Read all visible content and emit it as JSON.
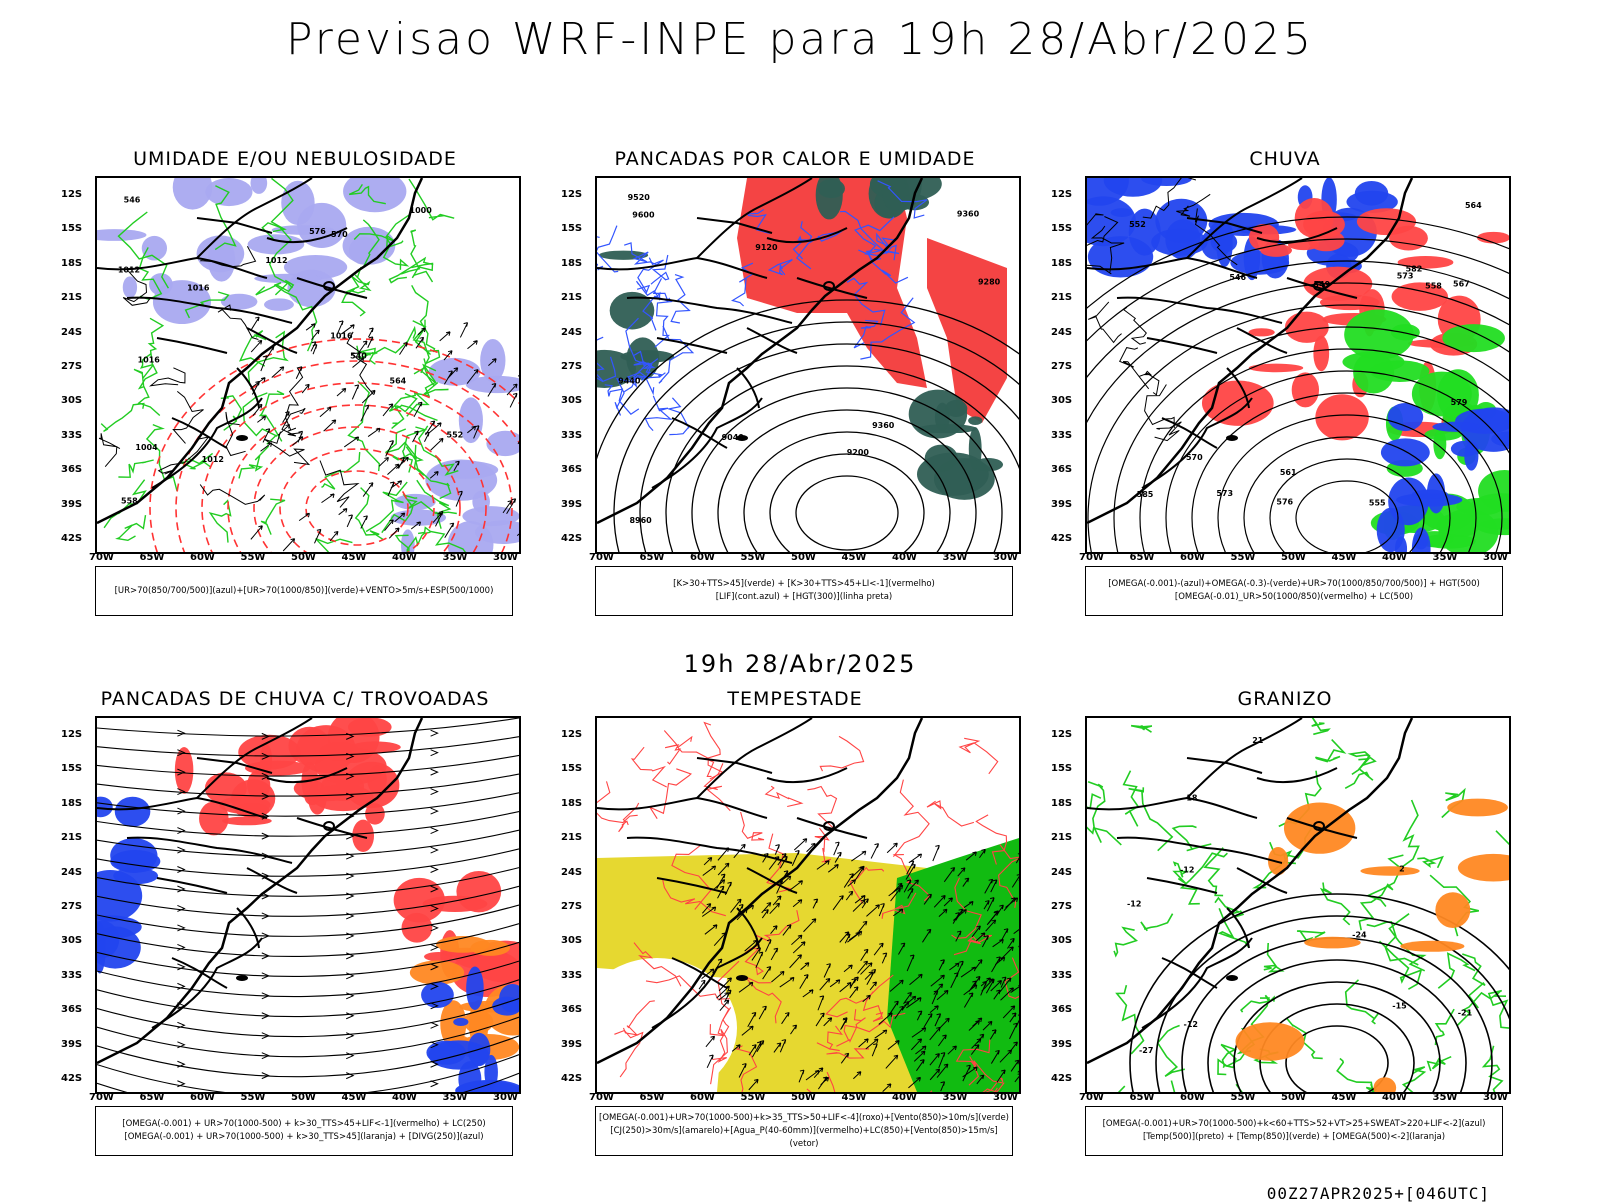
{
  "main_title": "Previsao WRF-INPE  para 19h 28/Abr/2025",
  "sub_title": "19h 28/Abr/2025",
  "footer": "00Z27APR2025+[046UTC]",
  "lat_labels": [
    "12S",
    "15S",
    "18S",
    "21S",
    "24S",
    "27S",
    "30S",
    "33S",
    "36S",
    "39S",
    "42S"
  ],
  "lon_labels": [
    "70W",
    "65W",
    "60W",
    "55W",
    "50W",
    "45W",
    "40W",
    "35W",
    "30W"
  ],
  "panels": [
    {
      "title": "UMIDADE E/OU NEBULOSIDADE",
      "legend": [
        "[UR>70(850/700/500)](azul)+[UR>70(1000/850)](verde)+VENTO>5m/s+ESP(500/1000)"
      ],
      "colors": {
        "fill_a": "#a9a9f0",
        "fill_b": "#ffffff",
        "line_a": "#22cc22",
        "line_b": "#ff3333",
        "line_c": "#000000"
      },
      "contour_labels": [
        "1012",
        "1012",
        "1016",
        "1012",
        "1016",
        "1004",
        "1000",
        "1016",
        "570",
        "576",
        "564",
        "558",
        "552",
        "546",
        "540"
      ]
    },
    {
      "title": "PANCADAS POR CALOR E UMIDADE",
      "legend": [
        "[K>30+TTS>45](verde) + [K>30+TTS>45+LI<-1](vermelho)",
        "[LIF](cont.azul) + [HGT(300)](linha preta)"
      ],
      "colors": {
        "fill_a": "#f44444",
        "fill_b": "#2f5e54",
        "line_a": "#3355ff",
        "line_c": "#000000"
      },
      "contour_labels": [
        "9600",
        "9520",
        "9440",
        "9360",
        "9280",
        "9200",
        "9120",
        "9040",
        "8960",
        "9360"
      ]
    },
    {
      "title": "CHUVA",
      "legend": [
        "[OMEGA(-0.001)-(azul)+OMEGA(-0.3)-(verde)+UR>70(1000/850/700/500)] + HGT(500)",
        "[OMEGA(-0.01)_UR>50(1000/850)(vermelho) + LC(500)"
      ],
      "colors": {
        "fill_a": "#ff4444",
        "fill_b": "#2244ee",
        "fill_c": "#22dd22",
        "line_c": "#000000"
      },
      "contour_labels": [
        "585",
        "582",
        "579",
        "576",
        "573",
        "570",
        "567",
        "564",
        "561",
        "558",
        "555",
        "552",
        "549",
        "546",
        "573"
      ]
    },
    {
      "title": "PANCADAS DE CHUVA C/ TROVOADAS",
      "legend": [
        "[OMEGA(-0.001) + UR>70(1000-500) + k>30_TTS>45+LIF<-1](vermelho) + LC(250)",
        "[OMEGA(-0.001) + UR>70(1000-500) + k>30_TTS>45](laranja) + [DIVG(250)](azul)"
      ],
      "colors": {
        "fill_a": "#ff4444",
        "fill_b": "#ff8822",
        "fill_c": "#2244ee",
        "line_c": "#000000"
      },
      "contour_labels": []
    },
    {
      "title": "TEMPESTADE",
      "legend": [
        "[OMEGA(-0.001)+UR>70(1000-500)+k>35_TTS>50+LIF<-4](roxo)+[Vento(850)>10m/s](verde)",
        "[CJ(250)>30m/s](amarelo)+[Agua_P(40-60mm)](vermelho)+LC(850)+[Vento(850)>15m/s](vetor)"
      ],
      "colors": {
        "fill_a": "#e6d830",
        "fill_b": "#11bb11",
        "line_a": "#ff4444",
        "line_c": "#000000"
      },
      "contour_labels": []
    },
    {
      "title": "GRANIZO",
      "legend": [
        "[OMEGA(-0.001)+UR>70(1000-500)+k<60+TTS>52+VT>25+SWEAT>220+LIF<-2](azul)",
        "[Temp(500)](preto) + [Temp(850)](verde) + [OMEGA(500)<-2](laranja)"
      ],
      "colors": {
        "line_a": "#22cc22",
        "line_c": "#000000",
        "fill_b": "#ff8822"
      },
      "contour_labels": [
        "-12",
        "-12",
        "-15",
        "-12",
        "-18",
        "-21",
        "-24",
        "-27",
        "2",
        "21"
      ]
    }
  ]
}
